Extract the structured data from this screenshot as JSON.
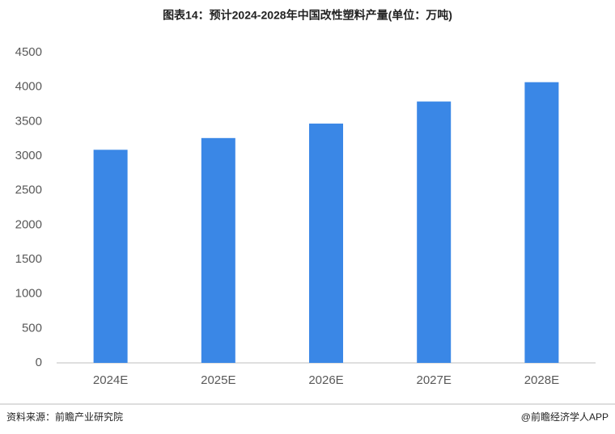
{
  "chart_data": {
    "type": "bar",
    "title": "图表14：预计2024-2028年中国改性塑料产量(单位：万吨)",
    "categories": [
      "2024E",
      "2025E",
      "2026E",
      "2027E",
      "2028E"
    ],
    "values": [
      3090,
      3260,
      3470,
      3790,
      4070
    ],
    "color": "#3a87e6",
    "ylim": [
      0,
      4500
    ],
    "yticks": [
      0,
      500,
      1000,
      1500,
      2000,
      2500,
      3000,
      3500,
      4000,
      4500
    ],
    "grid": false,
    "source": "资料来源：前瞻产业研究院",
    "credit": "@前瞻经济学人APP"
  }
}
